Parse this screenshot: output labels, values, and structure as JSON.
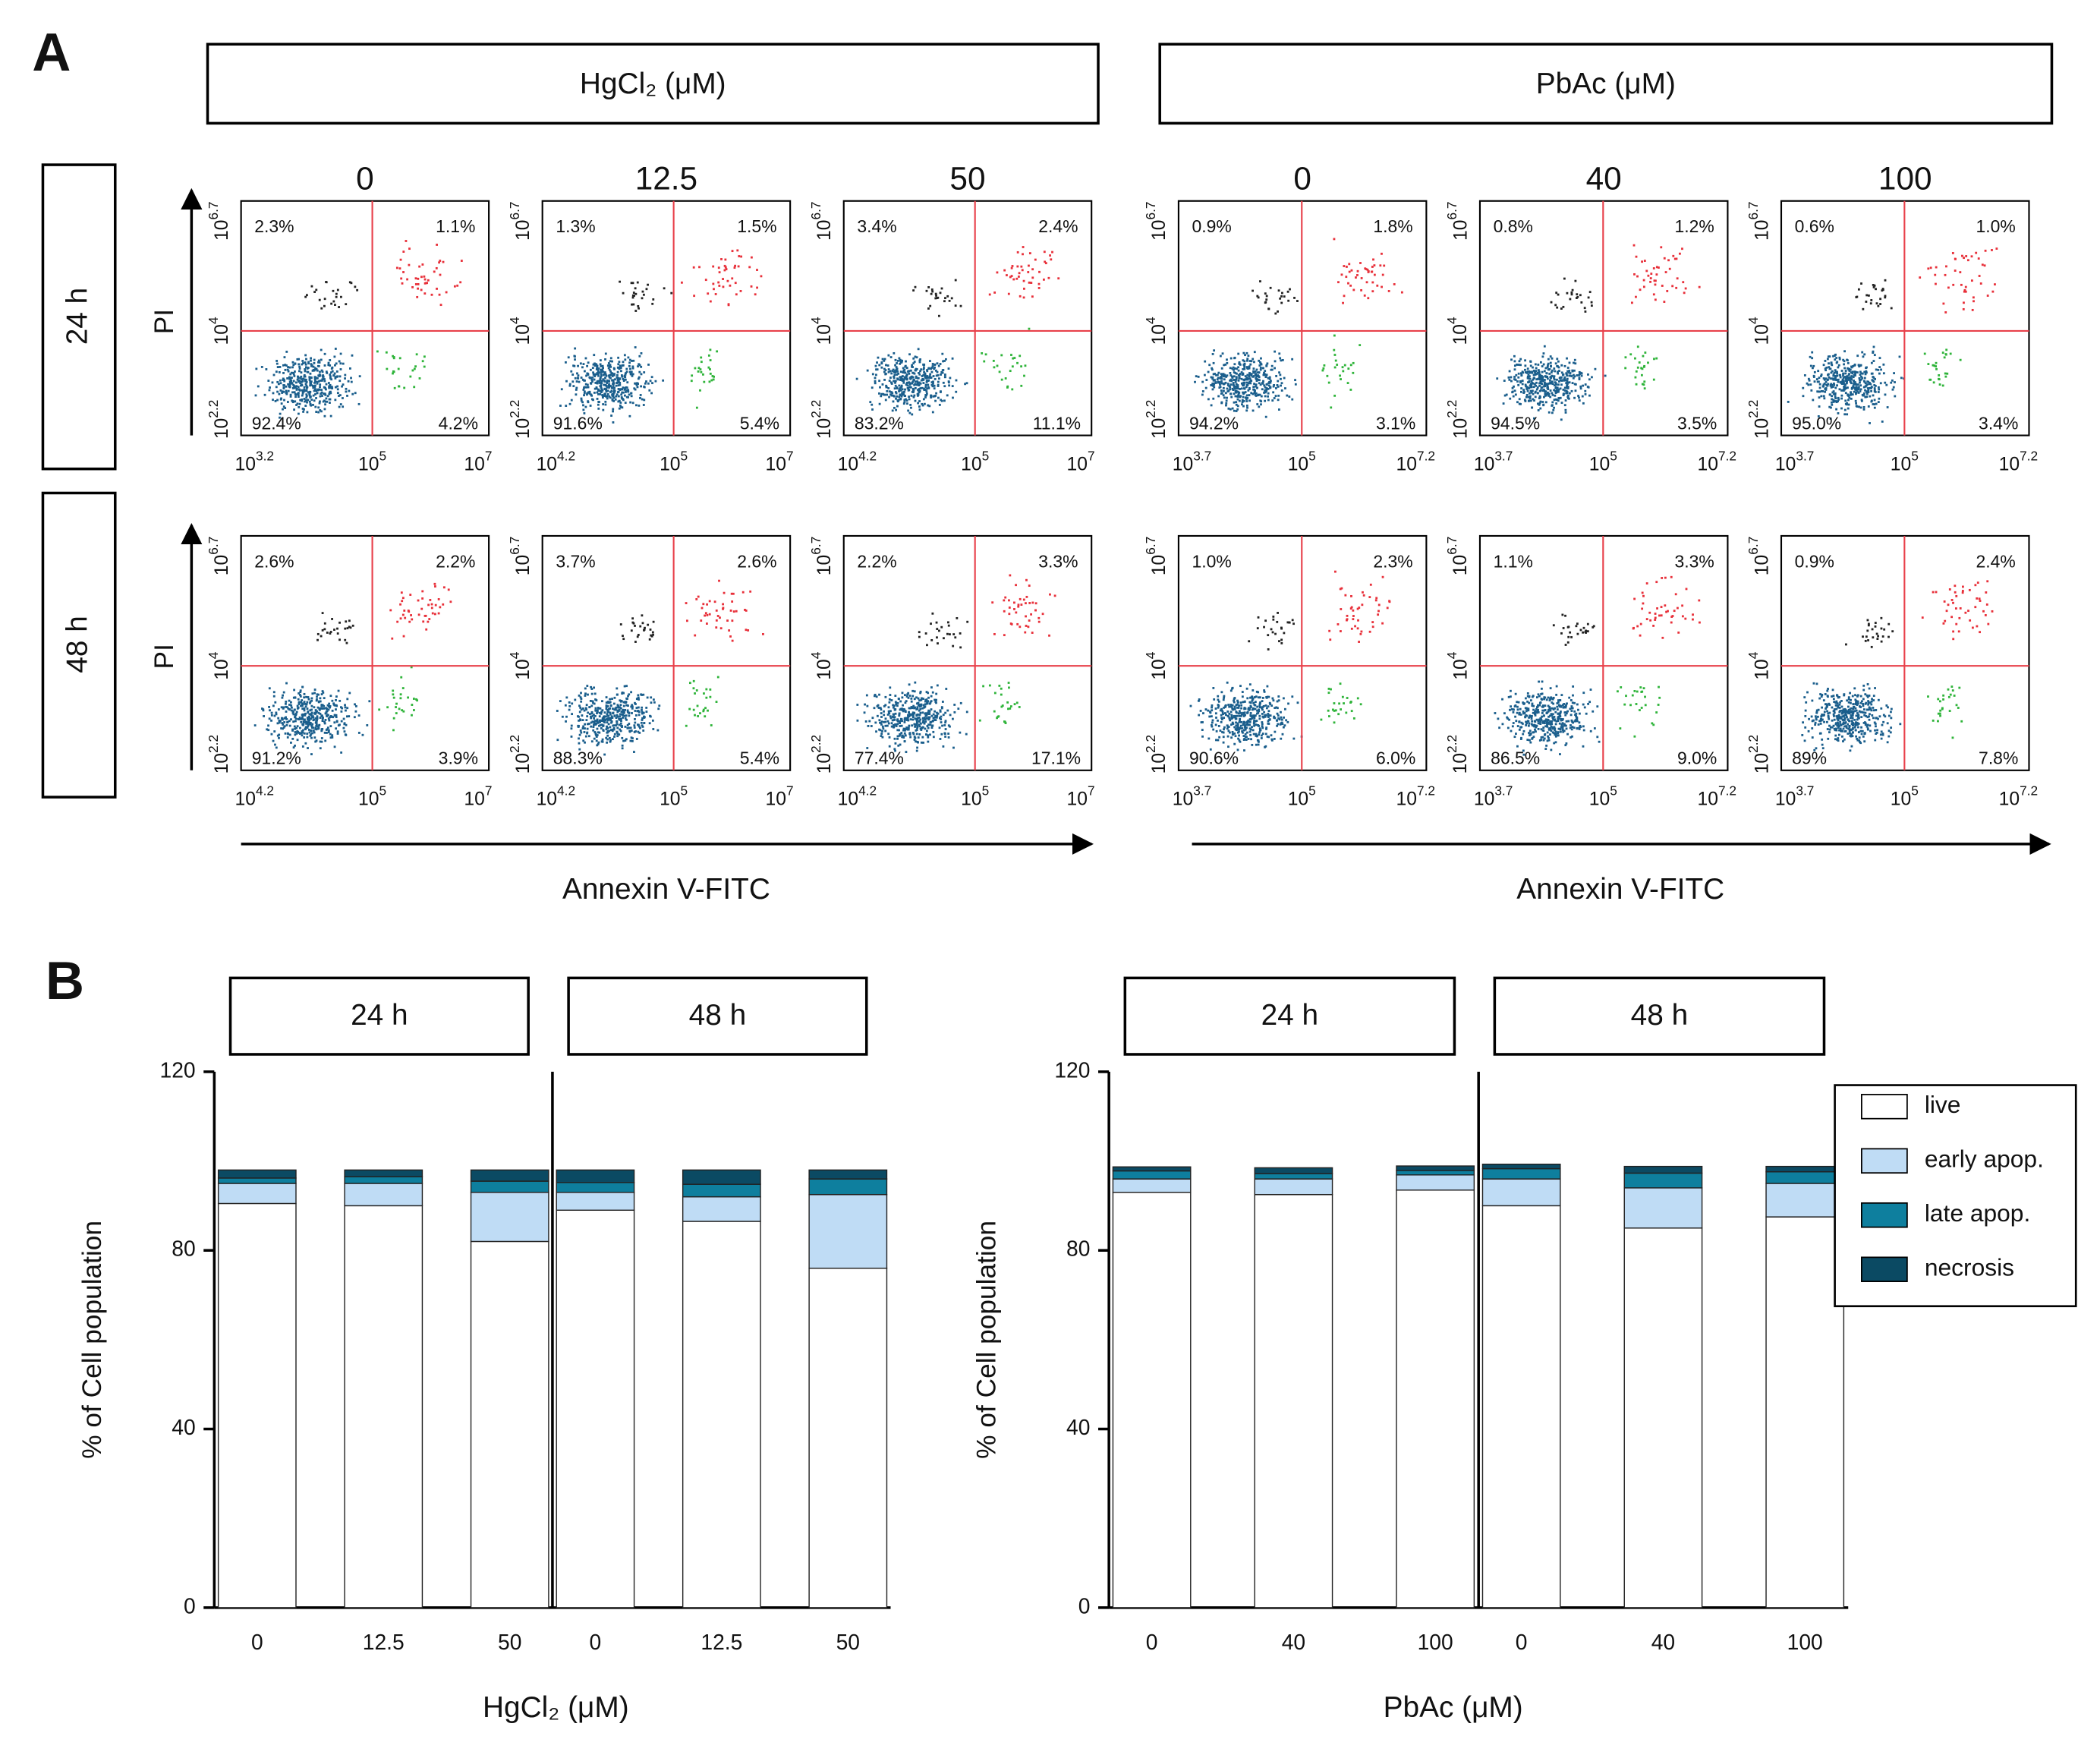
{
  "panel_a": {
    "label": "A",
    "y_axis_label": "PI",
    "rows": [
      "24 h",
      "48 h"
    ],
    "groups": [
      {
        "title": "HgCl₂ (μM)",
        "x_axis_label": "Annexin V-FITC",
        "doses": [
          "0",
          "12.5",
          "50"
        ],
        "plots": [
          [
            {
              "xticks": [
                [
                  "10",
                  "3.2"
                ],
                [
                  "10",
                  "5"
                ],
                [
                  "10",
                  "7"
                ]
              ],
              "yticks": [
                [
                  "10",
                  "2.2"
                ],
                [
                  "10",
                  "4"
                ],
                [
                  "10",
                  "6.7"
                ]
              ],
              "quadrants": [
                "2.3%",
                "1.1%",
                "92.4%",
                "4.2%"
              ]
            },
            {
              "xticks": [
                [
                  "10",
                  "4.2"
                ],
                [
                  "10",
                  "5"
                ],
                [
                  "10",
                  "7"
                ]
              ],
              "yticks": [
                [
                  "10",
                  "2.2"
                ],
                [
                  "10",
                  "4"
                ],
                [
                  "10",
                  "6.7"
                ]
              ],
              "quadrants": [
                "1.3%",
                "1.5%",
                "91.6%",
                "5.4%"
              ]
            },
            {
              "xticks": [
                [
                  "10",
                  "4.2"
                ],
                [
                  "10",
                  "5"
                ],
                [
                  "10",
                  "7"
                ]
              ],
              "yticks": [
                [
                  "10",
                  "2.2"
                ],
                [
                  "10",
                  "4"
                ],
                [
                  "10",
                  "6.7"
                ]
              ],
              "quadrants": [
                "3.4%",
                "2.4%",
                "83.2%",
                "11.1%"
              ]
            }
          ],
          [
            {
              "xticks": [
                [
                  "10",
                  "4.2"
                ],
                [
                  "10",
                  "5"
                ],
                [
                  "10",
                  "7"
                ]
              ],
              "yticks": [
                [
                  "10",
                  "2.2"
                ],
                [
                  "10",
                  "4"
                ],
                [
                  "10",
                  "6.7"
                ]
              ],
              "quadrants": [
                "2.6%",
                "2.2%",
                "91.2%",
                "3.9%"
              ]
            },
            {
              "xticks": [
                [
                  "10",
                  "4.2"
                ],
                [
                  "10",
                  "5"
                ],
                [
                  "10",
                  "7"
                ]
              ],
              "yticks": [
                [
                  "10",
                  "2.2"
                ],
                [
                  "10",
                  "4"
                ],
                [
                  "10",
                  "6.7"
                ]
              ],
              "quadrants": [
                "3.7%",
                "2.6%",
                "88.3%",
                "5.4%"
              ]
            },
            {
              "xticks": [
                [
                  "10",
                  "4.2"
                ],
                [
                  "10",
                  "5"
                ],
                [
                  "10",
                  "7"
                ]
              ],
              "yticks": [
                [
                  "10",
                  "2.2"
                ],
                [
                  "10",
                  "4"
                ],
                [
                  "10",
                  "6.7"
                ]
              ],
              "quadrants": [
                "2.2%",
                "3.3%",
                "77.4%",
                "17.1%"
              ]
            }
          ]
        ]
      },
      {
        "title": "PbAc (μM)",
        "x_axis_label": "Annexin V-FITC",
        "doses": [
          "0",
          "40",
          "100"
        ],
        "plots": [
          [
            {
              "xticks": [
                [
                  "10",
                  "3.7"
                ],
                [
                  "10",
                  "5"
                ],
                [
                  "10",
                  "7.2"
                ]
              ],
              "yticks": [
                [
                  "10",
                  "2.2"
                ],
                [
                  "10",
                  "4"
                ],
                [
                  "10",
                  "6.7"
                ]
              ],
              "quadrants": [
                "0.9%",
                "1.8%",
                "94.2%",
                "3.1%"
              ]
            },
            {
              "xticks": [
                [
                  "10",
                  "3.7"
                ],
                [
                  "10",
                  "5"
                ],
                [
                  "10",
                  "7.2"
                ]
              ],
              "yticks": [
                [
                  "10",
                  "2.2"
                ],
                [
                  "10",
                  "4"
                ],
                [
                  "10",
                  "6.7"
                ]
              ],
              "quadrants": [
                "0.8%",
                "1.2%",
                "94.5%",
                "3.5%"
              ]
            },
            {
              "xticks": [
                [
                  "10",
                  "3.7"
                ],
                [
                  "10",
                  "5"
                ],
                [
                  "10",
                  "7.2"
                ]
              ],
              "yticks": [
                [
                  "10",
                  "2.2"
                ],
                [
                  "10",
                  "4"
                ],
                [
                  "10",
                  "6.7"
                ]
              ],
              "quadrants": [
                "0.6%",
                "1.0%",
                "95.0%",
                "3.4%"
              ]
            }
          ],
          [
            {
              "xticks": [
                [
                  "10",
                  "3.7"
                ],
                [
                  "10",
                  "5"
                ],
                [
                  "10",
                  "7.2"
                ]
              ],
              "yticks": [
                [
                  "10",
                  "2.2"
                ],
                [
                  "10",
                  "4"
                ],
                [
                  "10",
                  "6.7"
                ]
              ],
              "quadrants": [
                "1.0%",
                "2.3%",
                "90.6%",
                "6.0%"
              ]
            },
            {
              "xticks": [
                [
                  "10",
                  "3.7"
                ],
                [
                  "10",
                  "5"
                ],
                [
                  "10",
                  "7.2"
                ]
              ],
              "yticks": [
                [
                  "10",
                  "2.2"
                ],
                [
                  "10",
                  "4"
                ],
                [
                  "10",
                  "6.7"
                ]
              ],
              "quadrants": [
                "1.1%",
                "3.3%",
                "86.5%",
                "9.0%"
              ]
            },
            {
              "xticks": [
                [
                  "10",
                  "3.7"
                ],
                [
                  "10",
                  "5"
                ],
                [
                  "10",
                  "7.2"
                ]
              ],
              "yticks": [
                [
                  "10",
                  "2.2"
                ],
                [
                  "10",
                  "4"
                ],
                [
                  "10",
                  "6.7"
                ]
              ],
              "quadrants": [
                "0.9%",
                "2.4%",
                "89%",
                "7.8%"
              ]
            }
          ]
        ]
      }
    ]
  },
  "panel_b_label": "B",
  "chart_data": [
    {
      "type": "bar",
      "stacked": true,
      "facets": [
        "24 h",
        "48 h"
      ],
      "categories": [
        "0",
        "12.5",
        "50",
        "0",
        "12.5",
        "50"
      ],
      "x_axis_label": "HgCl₂ (μM)",
      "y_axis_label": "% of Cell population",
      "ylim": [
        0,
        120
      ],
      "yticks": [
        0,
        40,
        80,
        120
      ],
      "legend": false,
      "series": [
        {
          "name": "live",
          "color": "#ffffff",
          "values": [
            90.5,
            90,
            82,
            89,
            86.5,
            76
          ]
        },
        {
          "name": "early apop.",
          "color": "#bfdcf5",
          "values": [
            4.5,
            5,
            11,
            4,
            5.5,
            16.5
          ]
        },
        {
          "name": "late apop.",
          "color": "#0e7f9e",
          "values": [
            1.2,
            1.5,
            2.5,
            2.2,
            2.8,
            3.5
          ]
        },
        {
          "name": "necrosis",
          "color": "#0b4a63",
          "values": [
            1.8,
            1.5,
            2.5,
            2.8,
            3.2,
            2
          ]
        }
      ]
    },
    {
      "type": "bar",
      "stacked": true,
      "facets": [
        "24 h",
        "48 h"
      ],
      "categories": [
        "0",
        "40",
        "100",
        "0",
        "40",
        "100"
      ],
      "x_axis_label": "PbAc (μM)",
      "y_axis_label": "% of Cell population",
      "ylim": [
        0,
        120
      ],
      "yticks": [
        0,
        40,
        80,
        120
      ],
      "legend": "right",
      "series": [
        {
          "name": "live",
          "color": "#ffffff",
          "values": [
            93,
            92.5,
            93.5,
            90,
            85,
            87.5
          ]
        },
        {
          "name": "early apop.",
          "color": "#bfdcf5",
          "values": [
            3,
            3.5,
            3.4,
            6,
            9,
            7.5
          ]
        },
        {
          "name": "late apop.",
          "color": "#0e7f9e",
          "values": [
            1.8,
            1.2,
            1,
            2.3,
            3.3,
            2.6
          ]
        },
        {
          "name": "necrosis",
          "color": "#0b4a63",
          "values": [
            0.9,
            1.3,
            1,
            1,
            1.5,
            1.2
          ]
        }
      ]
    }
  ]
}
